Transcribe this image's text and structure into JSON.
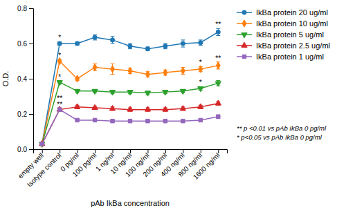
{
  "chart_data": {
    "type": "line",
    "xlabel": "pAb IkBa concentration",
    "ylabel": "O.D.",
    "categories": [
      "empty well",
      "Isotype control",
      "0 pg/ml",
      "100 pg/ml",
      "1 ng/ml",
      "10 ng/ml",
      "100 ng/ml",
      "200 ng/ml",
      "400 ng/ml",
      "800 ng/ml",
      "1600 ng/ml"
    ],
    "series": [
      {
        "name": "IkBa protein 20 ug/ml",
        "marker": "circle",
        "values": [
          0.03,
          0.6,
          0.6,
          0.635,
          0.62,
          0.585,
          0.57,
          0.585,
          0.6,
          0.605,
          0.665
        ],
        "yerr": [
          0.005,
          0.01,
          0.01,
          0.015,
          0.02,
          0.015,
          0.01,
          0.015,
          0.02,
          0.015,
          0.02
        ],
        "significance": [
          null,
          "*",
          null,
          null,
          null,
          null,
          null,
          null,
          null,
          null,
          "**"
        ]
      },
      {
        "name": "IkBa protein 10 ug/ml",
        "marker": "diamond",
        "values": [
          0.03,
          0.5,
          0.4,
          0.465,
          0.455,
          0.445,
          0.425,
          0.435,
          0.445,
          0.455,
          0.475
        ],
        "yerr": [
          0.005,
          0.01,
          0.01,
          0.02,
          0.03,
          0.015,
          0.015,
          0.015,
          0.02,
          0.015,
          0.02
        ],
        "significance": [
          null,
          "*",
          null,
          null,
          null,
          null,
          null,
          null,
          null,
          "*",
          "**"
        ]
      },
      {
        "name": "IkBa protein 5 ug/ml",
        "marker": "triangle-down",
        "values": [
          0.03,
          0.38,
          0.33,
          0.33,
          0.325,
          0.325,
          0.32,
          0.325,
          0.33,
          0.345,
          0.375
        ],
        "yerr": [
          0.005,
          0.01,
          0.01,
          0.01,
          0.01,
          0.01,
          0.01,
          0.01,
          0.01,
          0.01,
          0.015
        ],
        "significance": [
          null,
          "*",
          null,
          null,
          null,
          null,
          null,
          null,
          null,
          "*",
          null
        ]
      },
      {
        "name": "IkBa protein 2.5 ug/ml",
        "marker": "triangle-up",
        "values": [
          0.03,
          0.225,
          0.24,
          0.235,
          0.23,
          0.225,
          0.225,
          0.225,
          0.23,
          0.24,
          0.26
        ],
        "yerr": [
          0.005,
          0.01,
          0.01,
          0.01,
          0.01,
          0.01,
          0.01,
          0.01,
          0.01,
          0.01,
          0.01
        ],
        "significance": [
          null,
          "**",
          null,
          null,
          null,
          null,
          null,
          null,
          null,
          null,
          null
        ]
      },
      {
        "name": "IkBa protein 1 ug/ml",
        "marker": "square",
        "values": [
          0.03,
          0.225,
          0.165,
          0.165,
          0.16,
          0.16,
          0.16,
          0.16,
          0.16,
          0.165,
          0.185
        ],
        "yerr": [
          0.005,
          0.005,
          0.005,
          0.005,
          0.005,
          0.005,
          0.005,
          0.005,
          0.005,
          0.005,
          0.01
        ],
        "significance": [
          null,
          "**",
          null,
          null,
          null,
          null,
          null,
          null,
          null,
          null,
          null
        ]
      }
    ],
    "ylim": [
      0.0,
      0.8
    ],
    "yticks": [
      {
        "value": 0.0,
        "label": "0.0"
      },
      0.2,
      0.4,
      0.6,
      0.8
    ],
    "grid": false,
    "legend": "right",
    "annotations": [
      "** p <0.01 vs pAb IkBa 0 pg/ml",
      "* p<0.05 vs pAb IkBa 0 pg/ml"
    ]
  }
}
